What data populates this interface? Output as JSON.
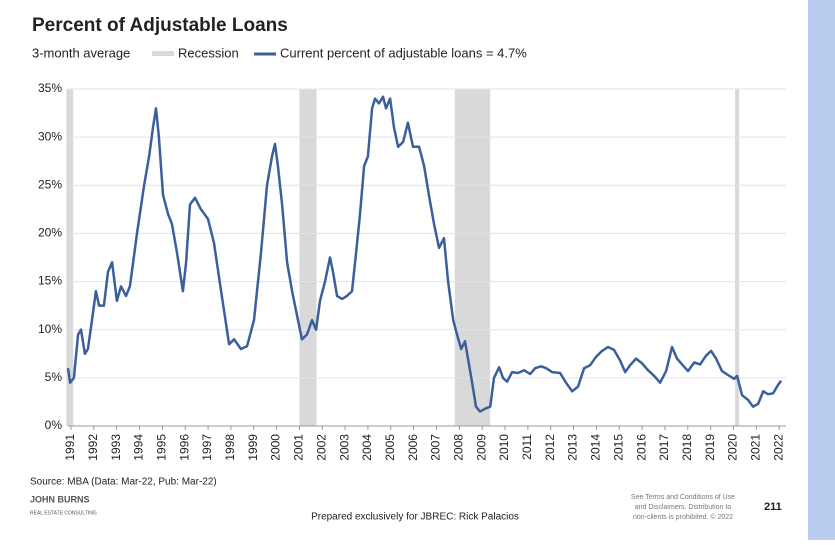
{
  "chart_data": {
    "type": "line",
    "title": "Percent of Adjustable Loans",
    "subtitle": "3-month average",
    "recession_label": "Recession",
    "recession_color": "#d9d9d9",
    "recessions": [
      [
        1990.8,
        1991.1
      ],
      [
        2001.0,
        2001.75
      ],
      [
        2007.8,
        2009.35
      ],
      [
        2020.07,
        2020.25
      ]
    ],
    "series": [
      {
        "name": "Current percent of adjustable loans = 4.7%",
        "color": "#3a5f9c",
        "x": [
          1990.87,
          1990.96,
          1991.13,
          1991.31,
          1991.44,
          1991.61,
          1991.74,
          1991.92,
          1992.09,
          1992.23,
          1992.44,
          1992.62,
          1992.8,
          1993.01,
          1993.19,
          1993.41,
          1993.58,
          1993.89,
          1994.2,
          1994.42,
          1994.59,
          1994.72,
          1994.85,
          1995.03,
          1995.25,
          1995.42,
          1995.64,
          1995.9,
          1996.04,
          1996.21,
          1996.43,
          1996.69,
          1997.0,
          1997.26,
          1997.57,
          1997.92,
          1998.14,
          1998.44,
          1998.71,
          1999.01,
          1999.32,
          1999.58,
          1999.8,
          1999.93,
          2000.06,
          2000.24,
          2000.46,
          2000.68,
          2000.94,
          2001.11,
          2001.33,
          2001.55,
          2001.73,
          2001.9,
          2002.12,
          2002.34,
          2002.47,
          2002.65,
          2002.87,
          2003.08,
          2003.3,
          2003.48,
          2003.65,
          2003.83,
          2004.0,
          2004.18,
          2004.31,
          2004.49,
          2004.66,
          2004.79,
          2004.97,
          2005.14,
          2005.32,
          2005.54,
          2005.75,
          2005.97,
          2006.24,
          2006.46,
          2006.67,
          2006.89,
          2007.11,
          2007.33,
          2007.51,
          2007.73,
          2007.9,
          2008.08,
          2008.25,
          2008.38,
          2008.56,
          2008.73,
          2008.91,
          2009.13,
          2009.35,
          2009.52,
          2009.74,
          2009.91,
          2010.09,
          2010.31,
          2010.57,
          2010.83,
          2011.1,
          2011.32,
          2011.58,
          2011.8,
          2012.06,
          2012.41,
          2012.67,
          2012.94,
          2013.2,
          2013.46,
          2013.72,
          2013.99,
          2014.25,
          2014.51,
          2014.77,
          2015.04,
          2015.26,
          2015.47,
          2015.74,
          2016.0,
          2016.26,
          2016.53,
          2016.79,
          2017.05,
          2017.31,
          2017.53,
          2017.75,
          2018.01,
          2018.28,
          2018.54,
          2018.8,
          2019.02,
          2019.24,
          2019.5,
          2019.76,
          2020.03,
          2020.16,
          2020.38,
          2020.64,
          2020.86,
          2021.08,
          2021.3,
          2021.51,
          2021.74,
          2021.96,
          2022.09
        ],
        "values": [
          6,
          4.5,
          5,
          9.5,
          10,
          7.5,
          8,
          11,
          14,
          12.5,
          12.5,
          16,
          17,
          13,
          14.5,
          13.5,
          14.5,
          20,
          25,
          28,
          31,
          33,
          30,
          24,
          22,
          21,
          18,
          14,
          17,
          23,
          23.7,
          22.5,
          21.5,
          19,
          14,
          8.5,
          9,
          8,
          8.3,
          11,
          18,
          25,
          28,
          29.3,
          27,
          23,
          17,
          14,
          11,
          9,
          9.5,
          11,
          10,
          13,
          15,
          17.5,
          16,
          13.5,
          13.2,
          13.5,
          14,
          18,
          22,
          27,
          28,
          33,
          34,
          33.5,
          34.2,
          33,
          34,
          31,
          29,
          29.5,
          31.5,
          29,
          29,
          27,
          24,
          21,
          18.5,
          19.5,
          15,
          11,
          9.5,
          8,
          8.8,
          7,
          4.5,
          2,
          1.5,
          1.8,
          2,
          5,
          6.1,
          5,
          4.6,
          5.6,
          5.5,
          5.8,
          5.4,
          6,
          6.2,
          6,
          5.6,
          5.5,
          4.5,
          3.6,
          4.1,
          6,
          6.3,
          7.2,
          7.8,
          8.2,
          7.9,
          6.8,
          5.6,
          6.3,
          7,
          6.5,
          5.8,
          5.2,
          4.5,
          5.7,
          8.2,
          7,
          6.4,
          5.7,
          6.6,
          6.4,
          7.3,
          7.8,
          7,
          5.7,
          5.3,
          4.9,
          5.2,
          3.2,
          2.7,
          2,
          2.3,
          3.6,
          3.3,
          3.4,
          4.3,
          4.7
        ]
      }
    ],
    "xlim": [
      1990.87,
      2022.3
    ],
    "xticks": [
      1991,
      1992,
      1993,
      1994,
      1995,
      1996,
      1997,
      1998,
      1999,
      2000,
      2001,
      2002,
      2003,
      2004,
      2005,
      2006,
      2007,
      2008,
      2009,
      2010,
      2011,
      2012,
      2013,
      2014,
      2015,
      2016,
      2017,
      2018,
      2019,
      2020,
      2021,
      2022
    ],
    "ylim": [
      0,
      35
    ],
    "yticks": [
      {
        "value": 0,
        "label": "0%"
      },
      {
        "value": 5,
        "label": "5%"
      },
      {
        "value": 10,
        "label": "10%"
      },
      {
        "value": 15,
        "label": "15%"
      },
      {
        "value": 20,
        "label": "20%"
      },
      {
        "value": 25,
        "label": "25%"
      },
      {
        "value": 30,
        "label": "30%"
      },
      {
        "value": 35,
        "label": "35%"
      }
    ],
    "grid": true,
    "source": "Source: MBA (Data: Mar-22, Pub: Mar-22)",
    "footer": "Prepared exclusively for JBREC: Rick Palacios",
    "disclaimer": [
      "See Terms and Conditions of Use",
      "and Disclaimers. Distribution to",
      "non-clients is prohibited. © 2022"
    ],
    "page_number": "211",
    "logo": [
      "JOHN BURNS",
      "REAL ESTATE CONSULTING"
    ]
  }
}
